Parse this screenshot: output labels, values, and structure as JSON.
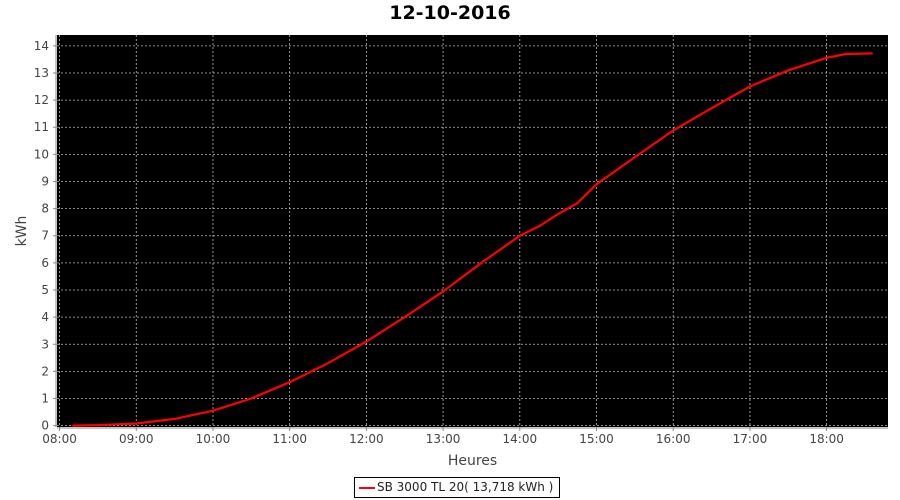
{
  "chart_data": {
    "type": "line",
    "title": "12-10-2016",
    "xlabel": "Heures",
    "ylabel": "kWh",
    "x_ticks": [
      "08:00",
      "09:00",
      "10:00",
      "11:00",
      "12:00",
      "13:00",
      "14:00",
      "15:00",
      "16:00",
      "17:00",
      "18:00"
    ],
    "y_ticks": [
      0,
      1,
      2,
      3,
      4,
      5,
      6,
      7,
      8,
      9,
      10,
      11,
      12,
      13,
      14
    ],
    "xlim": [
      "07:58",
      "18:48"
    ],
    "ylim": [
      -0.05,
      14.4
    ],
    "grid": true,
    "background": "#000000",
    "legend_position": "bottom",
    "series": [
      {
        "name": "SB 3000 TL 20( 13,718 kWh )",
        "color": "#ff0000",
        "x": [
          "08:10",
          "08:30",
          "09:00",
          "09:30",
          "10:00",
          "10:30",
          "11:00",
          "11:30",
          "12:00",
          "12:30",
          "13:00",
          "13:30",
          "14:00",
          "14:15",
          "14:30",
          "14:45",
          "15:00",
          "15:30",
          "16:00",
          "16:30",
          "17:00",
          "17:30",
          "18:00",
          "18:15",
          "18:36"
        ],
        "y": [
          0,
          0.02,
          0.08,
          0.25,
          0.55,
          1.0,
          1.6,
          2.3,
          3.1,
          4.0,
          4.95,
          6.0,
          7.0,
          7.35,
          7.8,
          8.2,
          8.9,
          9.9,
          10.88,
          11.7,
          12.5,
          13.1,
          13.56,
          13.7,
          13.72
        ]
      }
    ]
  }
}
